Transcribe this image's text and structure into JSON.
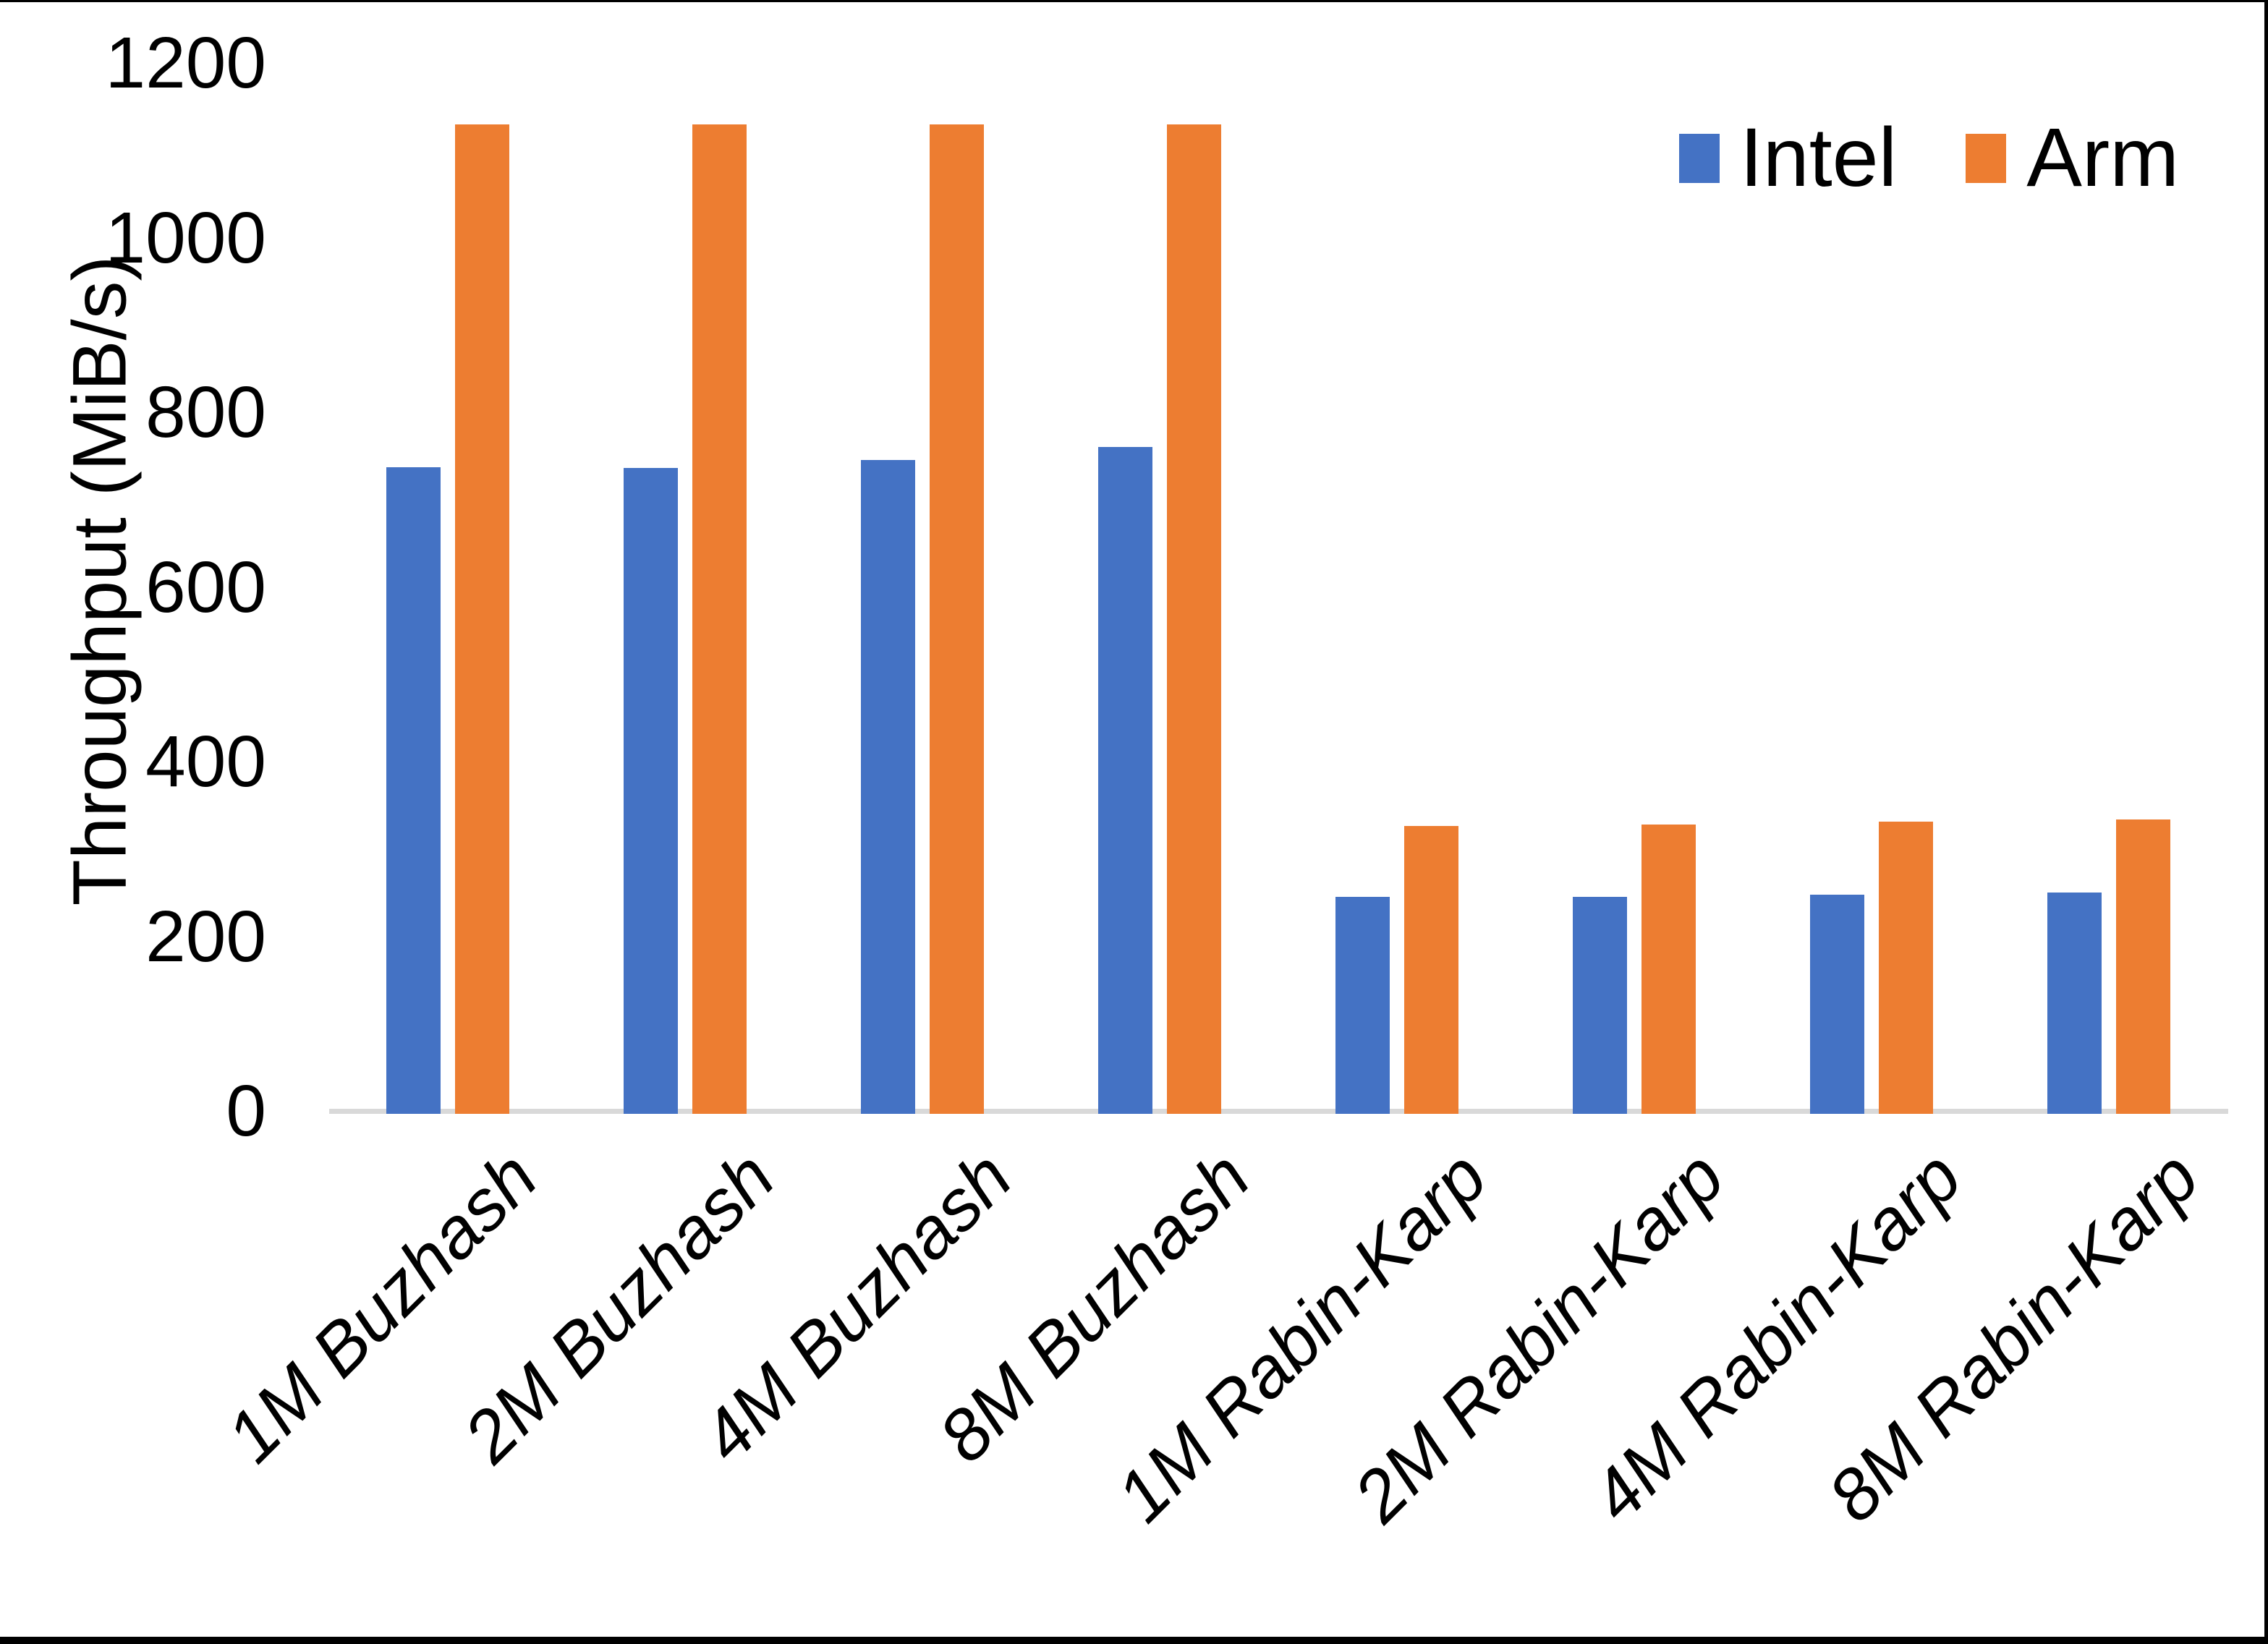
{
  "chart_data": {
    "type": "bar",
    "title": "",
    "xlabel": "",
    "ylabel": "Throughput (MiB/s)",
    "ylim": [
      0,
      1200
    ],
    "yticks": [
      0,
      200,
      400,
      600,
      800,
      1000,
      1200
    ],
    "grid": false,
    "legend_position": "top-right",
    "categories": [
      "1M Buzhash",
      "2M Buzhash",
      "4M Buzhash",
      "8M Buzhash",
      "1M Rabin-Karp",
      "2M Rabin-Karp",
      "4M Rabin-Karp",
      "8M Rabin-Karp"
    ],
    "series": [
      {
        "name": "Intel",
        "color": "#4472C4",
        "values": [
          737,
          736,
          745,
          760,
          245,
          245,
          248,
          250
        ]
      },
      {
        "name": "Arm",
        "color": "#ED7D31",
        "values": [
          1130,
          1130,
          1130,
          1130,
          326,
          328,
          331,
          334
        ]
      }
    ]
  },
  "colors": {
    "axis_line": "#D9D9D9",
    "text": "#000000",
    "frame_border": "#000000",
    "background": "#FFFFFF"
  }
}
